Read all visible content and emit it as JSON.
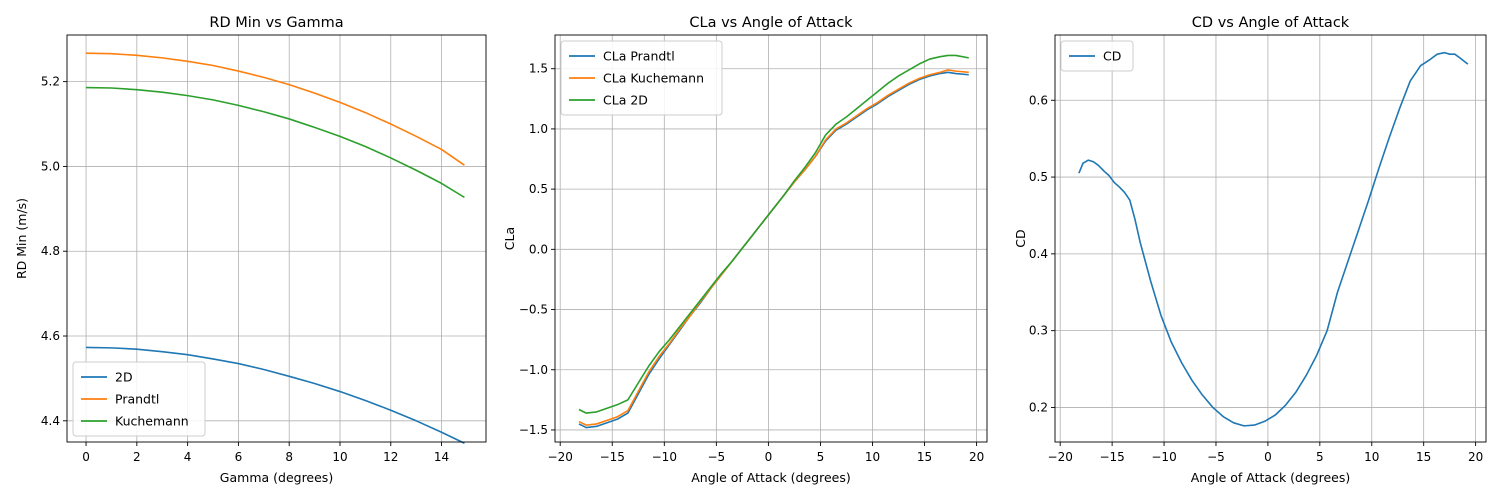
{
  "chart_data": [
    {
      "type": "line",
      "title": "RD Min vs Gamma",
      "xlabel": "Gamma (degrees)",
      "ylabel": "RD Min (m/s)",
      "xlim": [
        -0.75,
        15.75
      ],
      "ylim": [
        4.35,
        5.31
      ],
      "xticks": [
        0,
        2,
        4,
        6,
        8,
        10,
        12,
        14
      ],
      "yticks": [
        4.4,
        4.6,
        4.8,
        5.0,
        5.2
      ],
      "grid": true,
      "legend": "lower-left",
      "x": [
        0,
        1,
        2,
        3,
        4,
        5,
        6,
        7,
        8,
        9,
        10,
        11,
        12,
        13,
        14,
        14.9
      ],
      "series": [
        {
          "name": "2D",
          "color": "#1f77b4",
          "values": [
            4.573,
            4.572,
            4.569,
            4.563,
            4.556,
            4.546,
            4.535,
            4.521,
            4.505,
            4.488,
            4.469,
            4.448,
            4.425,
            4.4,
            4.373,
            4.347
          ]
        },
        {
          "name": "Prandtl",
          "color": "#ff7f0e",
          "values": [
            5.267,
            5.266,
            5.262,
            5.256,
            5.248,
            5.238,
            5.225,
            5.21,
            5.193,
            5.173,
            5.151,
            5.127,
            5.1,
            5.071,
            5.04,
            5.003
          ]
        },
        {
          "name": "Kuchemann",
          "color": "#2ca02c",
          "values": [
            5.186,
            5.185,
            5.181,
            5.175,
            5.167,
            5.157,
            5.144,
            5.129,
            5.112,
            5.092,
            5.071,
            5.047,
            5.02,
            4.991,
            4.96,
            4.927
          ]
        }
      ]
    },
    {
      "type": "line",
      "title": "CLa vs Angle of Attack",
      "xlabel": "Angle of Attack (degrees)",
      "ylabel": "CLa",
      "xlim": [
        -20.5,
        21.0
      ],
      "ylim": [
        -1.6,
        1.78
      ],
      "xticks": [
        -20,
        -15,
        -10,
        -5,
        0,
        5,
        10,
        15,
        20
      ],
      "yticks": [
        -1.5,
        -1.0,
        -0.5,
        0.0,
        0.5,
        1.0,
        1.5
      ],
      "grid": true,
      "legend": "upper-left",
      "x": [
        -18.2,
        -17.5,
        -16.5,
        -15.5,
        -14.5,
        -13.5,
        -12.5,
        -11.5,
        -10.5,
        -9.5,
        -8.5,
        -7.5,
        -6.5,
        -5.5,
        -4.5,
        -3.5,
        -2.5,
        -1.5,
        -0.5,
        0.5,
        1.5,
        2.5,
        3.5,
        4.5,
        5.5,
        6.5,
        7.5,
        8.5,
        9.5,
        10.5,
        11.5,
        12.5,
        13.5,
        14.5,
        15.5,
        16.5,
        17.25,
        18.0,
        19.25
      ],
      "series": [
        {
          "name": "CLa Prandtl",
          "color": "#1f77b4",
          "values": [
            -1.45,
            -1.48,
            -1.47,
            -1.44,
            -1.41,
            -1.36,
            -1.2,
            -1.04,
            -0.91,
            -0.79,
            -0.67,
            -0.55,
            -0.44,
            -0.32,
            -0.21,
            -0.1,
            0.01,
            0.12,
            0.23,
            0.34,
            0.45,
            0.56,
            0.66,
            0.77,
            0.9,
            0.99,
            1.04,
            1.1,
            1.16,
            1.21,
            1.27,
            1.32,
            1.37,
            1.41,
            1.44,
            1.46,
            1.47,
            1.46,
            1.45
          ]
        },
        {
          "name": "CLa Kuchemann",
          "color": "#ff7f0e",
          "values": [
            -1.43,
            -1.46,
            -1.45,
            -1.42,
            -1.39,
            -1.34,
            -1.18,
            -1.02,
            -0.89,
            -0.78,
            -0.66,
            -0.55,
            -0.43,
            -0.32,
            -0.21,
            -0.1,
            0.01,
            0.12,
            0.23,
            0.34,
            0.45,
            0.56,
            0.66,
            0.77,
            0.91,
            1.0,
            1.05,
            1.11,
            1.17,
            1.22,
            1.28,
            1.33,
            1.38,
            1.42,
            1.45,
            1.47,
            1.49,
            1.48,
            1.47
          ]
        },
        {
          "name": "CLa 2D",
          "color": "#2ca02c",
          "values": [
            -1.33,
            -1.36,
            -1.35,
            -1.32,
            -1.29,
            -1.25,
            -1.11,
            -0.97,
            -0.85,
            -0.75,
            -0.64,
            -0.53,
            -0.42,
            -0.31,
            -0.2,
            -0.1,
            0.01,
            0.12,
            0.23,
            0.34,
            0.45,
            0.57,
            0.68,
            0.8,
            0.95,
            1.04,
            1.1,
            1.17,
            1.24,
            1.31,
            1.38,
            1.44,
            1.49,
            1.54,
            1.58,
            1.6,
            1.61,
            1.61,
            1.59
          ]
        }
      ]
    },
    {
      "type": "line",
      "title": "CD vs Angle of Attack",
      "xlabel": "Angle of Attack (degrees)",
      "ylabel": "CD",
      "xlim": [
        -20.5,
        21.0
      ],
      "ylim": [
        0.155,
        0.685
      ],
      "xticks": [
        -20,
        -15,
        -10,
        -5,
        0,
        5,
        10,
        15,
        20
      ],
      "yticks": [
        0.2,
        0.3,
        0.4,
        0.5,
        0.6
      ],
      "grid": true,
      "legend": "upper-left",
      "x": [
        -18.2,
        -17.8,
        -17.3,
        -16.8,
        -16.3,
        -15.8,
        -15.3,
        -14.8,
        -14.3,
        -13.8,
        -13.3,
        -12.8,
        -12.3,
        -11.3,
        -10.3,
        -9.3,
        -8.3,
        -7.3,
        -6.3,
        -5.3,
        -4.3,
        -3.3,
        -2.3,
        -1.3,
        -0.3,
        0.7,
        1.7,
        2.7,
        3.7,
        4.7,
        5.7,
        6.7,
        7.7,
        8.7,
        9.7,
        10.7,
        11.7,
        12.7,
        13.7,
        14.7,
        15.5,
        16.3,
        17.0,
        17.5,
        18.0,
        18.5,
        19.25
      ],
      "series": [
        {
          "name": "CD",
          "color": "#1f77b4",
          "values": [
            0.505,
            0.518,
            0.522,
            0.52,
            0.515,
            0.508,
            0.502,
            0.493,
            0.487,
            0.48,
            0.47,
            0.445,
            0.415,
            0.365,
            0.32,
            0.285,
            0.258,
            0.235,
            0.216,
            0.2,
            0.188,
            0.18,
            0.176,
            0.177,
            0.182,
            0.19,
            0.203,
            0.22,
            0.242,
            0.268,
            0.3,
            0.35,
            0.39,
            0.43,
            0.47,
            0.512,
            0.552,
            0.59,
            0.625,
            0.645,
            0.652,
            0.66,
            0.662,
            0.66,
            0.66,
            0.655,
            0.647
          ]
        }
      ]
    }
  ]
}
